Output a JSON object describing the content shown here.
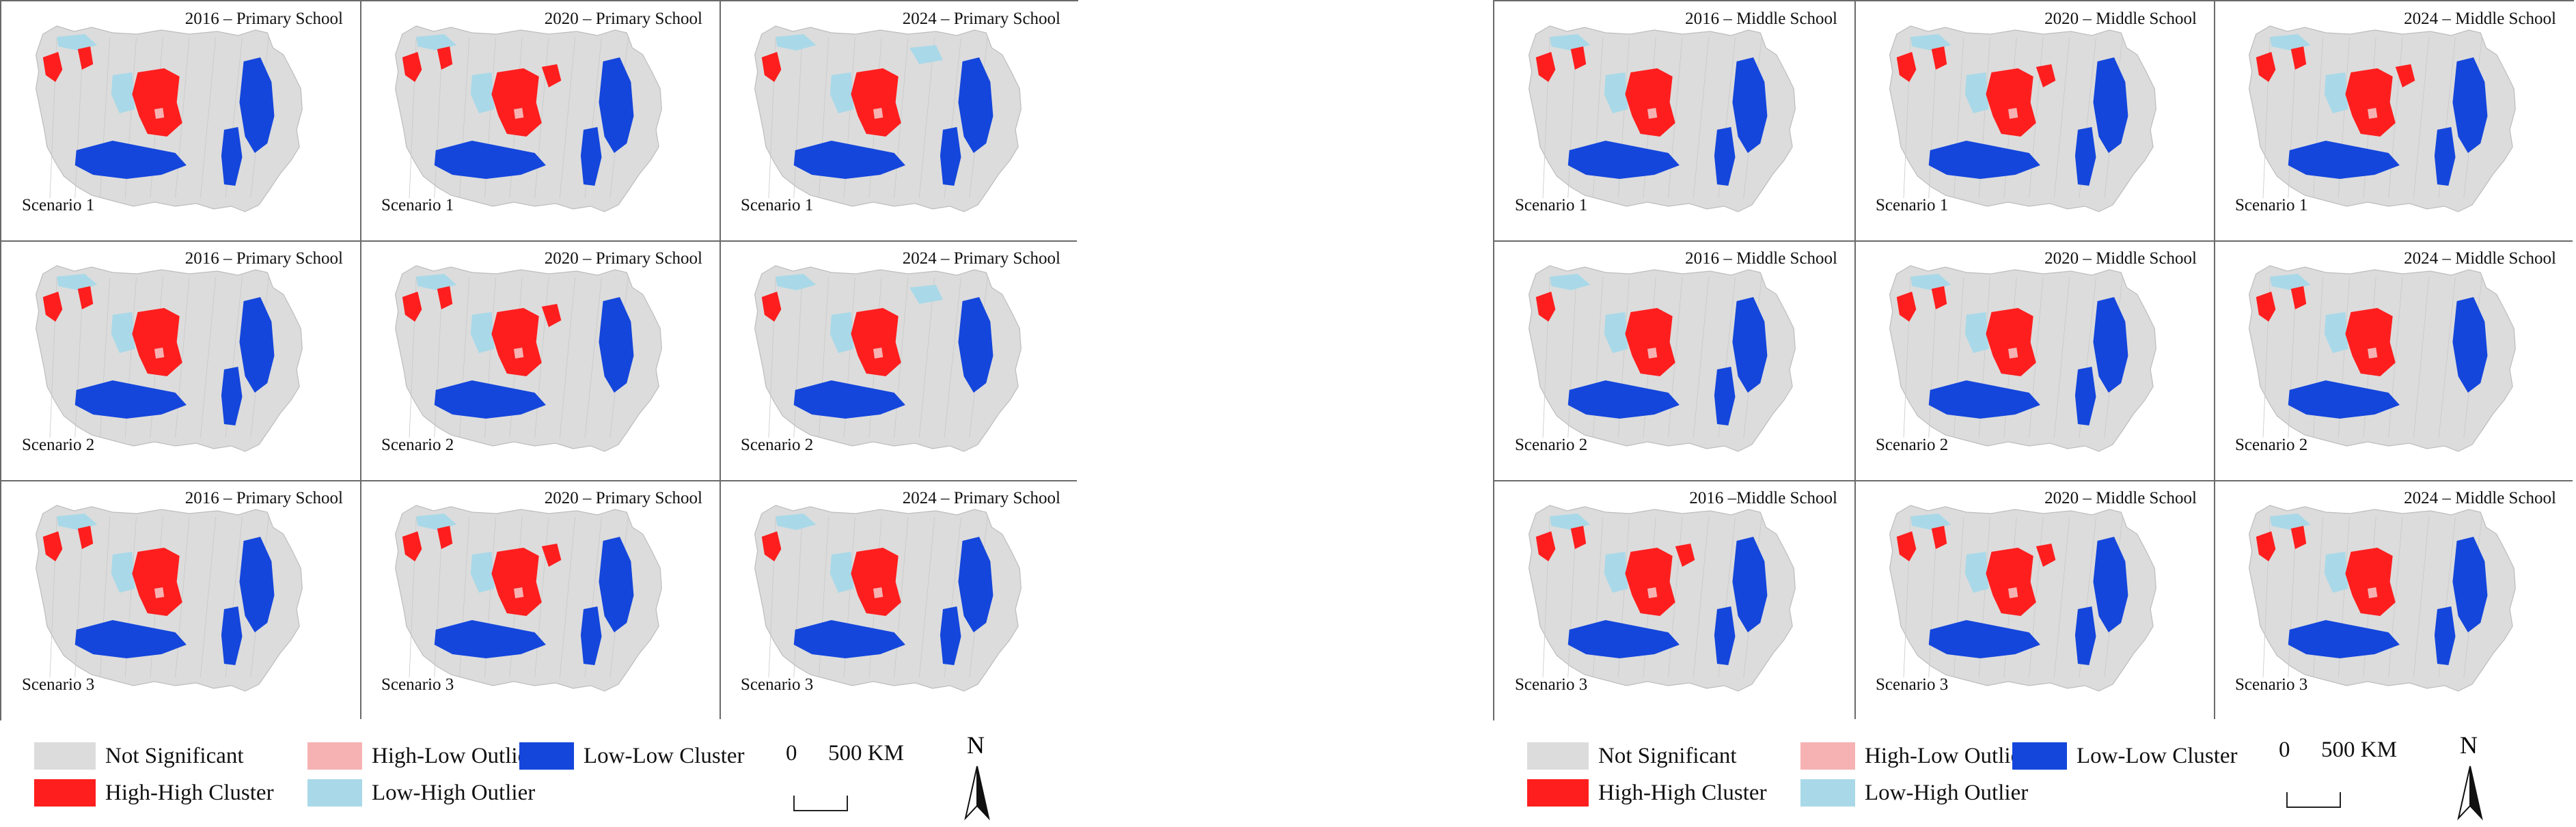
{
  "colors": {
    "not_significant": "#dcdcdc",
    "high_high": "#ff1e1e",
    "low_low": "#1446dc",
    "high_low": "#f6b2b2",
    "low_high": "#a9d9e8",
    "border": "#6a6a6a"
  },
  "figures": [
    {
      "school": "Primary School",
      "panels": [
        {
          "title": "2016 – Primary School",
          "scenario": "Scenario 1",
          "hh": 3,
          "ll": 3,
          "lh": 2
        },
        {
          "title": "2020 – Primary School",
          "scenario": "Scenario 1",
          "hh": 4,
          "ll": 3,
          "lh": 2
        },
        {
          "title": "2024 – Primary School",
          "scenario": "Scenario 1",
          "hh": 2,
          "ll": 3,
          "lh": 3
        },
        {
          "title": "2016 – Primary School",
          "scenario": "Scenario 2",
          "hh": 3,
          "ll": 3,
          "lh": 2
        },
        {
          "title": "2020 – Primary School",
          "scenario": "Scenario 2",
          "hh": 4,
          "ll": 2,
          "lh": 2
        },
        {
          "title": "2024 – Primary School",
          "scenario": "Scenario 2",
          "hh": 2,
          "ll": 2,
          "lh": 3
        },
        {
          "title": "2016 – Primary School",
          "scenario": "Scenario 3",
          "hh": 3,
          "ll": 3,
          "lh": 2
        },
        {
          "title": "2020 – Primary School",
          "scenario": "Scenario 3",
          "hh": 4,
          "ll": 3,
          "lh": 2
        },
        {
          "title": "2024 – Primary School",
          "scenario": "Scenario 3",
          "hh": 2,
          "ll": 3,
          "lh": 2
        }
      ],
      "legend": {
        "not_significant": "Not Significant",
        "high_high": "High-High Cluster",
        "high_low": "High-Low Outlier",
        "low_high": "Low-High Outlier",
        "low_low": "Low-Low Cluster"
      },
      "scale": {
        "zero": "0",
        "distance": "500 KM"
      },
      "north": "N"
    },
    {
      "school": "Middle School",
      "panels": [
        {
          "title": "2016 – Middle School",
          "scenario": "Scenario 1",
          "hh": 3,
          "ll": 3,
          "lh": 2
        },
        {
          "title": "2020 – Middle School",
          "scenario": "Scenario 1",
          "hh": 4,
          "ll": 3,
          "lh": 2
        },
        {
          "title": "2024 – Middle School",
          "scenario": "Scenario 1",
          "hh": 4,
          "ll": 3,
          "lh": 2
        },
        {
          "title": "2016 – Middle School",
          "scenario": "Scenario 2",
          "hh": 2,
          "ll": 3,
          "lh": 2
        },
        {
          "title": "2020 – Middle School",
          "scenario": "Scenario 2",
          "hh": 3,
          "ll": 3,
          "lh": 2
        },
        {
          "title": "2024 – Middle School",
          "scenario": "Scenario 2",
          "hh": 3,
          "ll": 2,
          "lh": 2
        },
        {
          "title": "2016 –Middle School",
          "scenario": "Scenario 3",
          "hh": 4,
          "ll": 3,
          "lh": 2
        },
        {
          "title": "2020 – Middle School",
          "scenario": "Scenario 3",
          "hh": 4,
          "ll": 3,
          "lh": 2
        },
        {
          "title": "2024 – Middle School",
          "scenario": "Scenario 3",
          "hh": 3,
          "ll": 3,
          "lh": 2
        }
      ],
      "legend": {
        "not_significant": "Not Significant",
        "high_high": "High-High Cluster",
        "high_low": "High-Low Outlier",
        "low_high": "Low-High Outlier",
        "low_low": "Low-Low Cluster"
      },
      "scale": {
        "zero": "0",
        "distance": "500 KM"
      },
      "north": "N"
    }
  ]
}
